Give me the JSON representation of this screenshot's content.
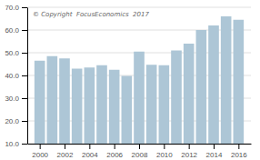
{
  "chart_data": {
    "type": "bar",
    "annotations": [
      "© Copyright  FocusEconomics  2017"
    ],
    "x": [
      2000,
      2001,
      2002,
      2003,
      2004,
      2005,
      2006,
      2007,
      2008,
      2009,
      2010,
      2011,
      2012,
      2013,
      2014,
      2015,
      2016
    ],
    "values": [
      46.5,
      48.5,
      47.5,
      43.0,
      43.5,
      44.5,
      42.5,
      39.8,
      50.5,
      44.7,
      44.5,
      51.0,
      54.0,
      60.0,
      62.0,
      66.0,
      64.5
    ],
    "color": "#adc6d6",
    "xlim": [
      1999.0,
      2017.0
    ],
    "xticks": [
      2000,
      2002,
      2004,
      2006,
      2008,
      2010,
      2012,
      2014,
      2016
    ],
    "ylim": [
      10.0,
      70.0
    ],
    "yticks": [
      {
        "value": 10.0,
        "label": "10.0"
      },
      {
        "value": 20.0,
        "label": "20.0"
      },
      {
        "value": 30.0,
        "label": "30.0"
      },
      {
        "value": 40.0,
        "label": "40.0"
      },
      {
        "value": 50.0,
        "label": "50.0"
      },
      {
        "value": 60.0,
        "label": "60.0"
      },
      {
        "value": 70.0,
        "label": "70.0"
      }
    ],
    "grid": true
  }
}
